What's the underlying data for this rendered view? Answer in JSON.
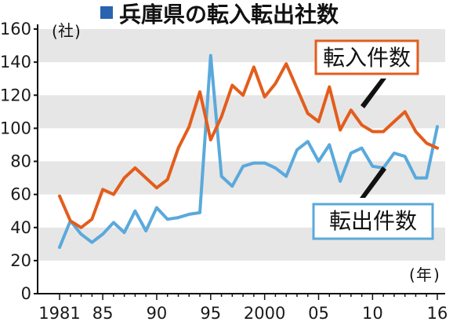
{
  "chart_data": {
    "type": "line",
    "title": "兵庫県の転入転出社数",
    "ylabel": "社",
    "xlabel": "年",
    "ylim": [
      0,
      160
    ],
    "yticks": [
      0,
      20,
      40,
      60,
      80,
      100,
      120,
      140,
      160
    ],
    "xlim": [
      1981,
      2016
    ],
    "xtick_values": [
      1981,
      1985,
      1990,
      1995,
      2000,
      2005,
      2010,
      2016
    ],
    "xtick_labels": [
      "1981",
      "85",
      "90",
      "95",
      "2000",
      "05",
      "10",
      "16"
    ],
    "grid": "horizontal bands",
    "colors": {
      "inflow": "#e35d1c",
      "outflow": "#5aa9dc",
      "title_marker": "#2a63b0",
      "band": "#e6e6e6"
    },
    "x": [
      1981,
      1982,
      1983,
      1984,
      1985,
      1986,
      1987,
      1988,
      1989,
      1990,
      1991,
      1992,
      1993,
      1994,
      1995,
      1996,
      1997,
      1998,
      1999,
      2000,
      2001,
      2002,
      2003,
      2004,
      2005,
      2006,
      2007,
      2008,
      2009,
      2010,
      2011,
      2012,
      2013,
      2014,
      2015,
      2016
    ],
    "series": [
      {
        "name": "転入件数",
        "key": "inflow",
        "values": [
          59,
          44,
          40,
          45,
          63,
          60,
          70,
          76,
          70,
          64,
          69,
          88,
          101,
          122,
          93,
          107,
          126,
          120,
          137,
          119,
          127,
          139,
          124,
          109,
          104,
          125,
          99,
          111,
          102,
          98,
          98,
          104,
          110,
          98,
          91,
          88
        ]
      },
      {
        "name": "転出件数",
        "key": "outflow",
        "values": [
          28,
          44,
          36,
          31,
          36,
          43,
          37,
          50,
          38,
          52,
          45,
          46,
          48,
          49,
          144,
          71,
          65,
          77,
          79,
          79,
          76,
          71,
          87,
          92,
          80,
          90,
          68,
          85,
          88,
          77,
          76,
          85,
          83,
          70,
          70,
          101
        ]
      }
    ]
  }
}
